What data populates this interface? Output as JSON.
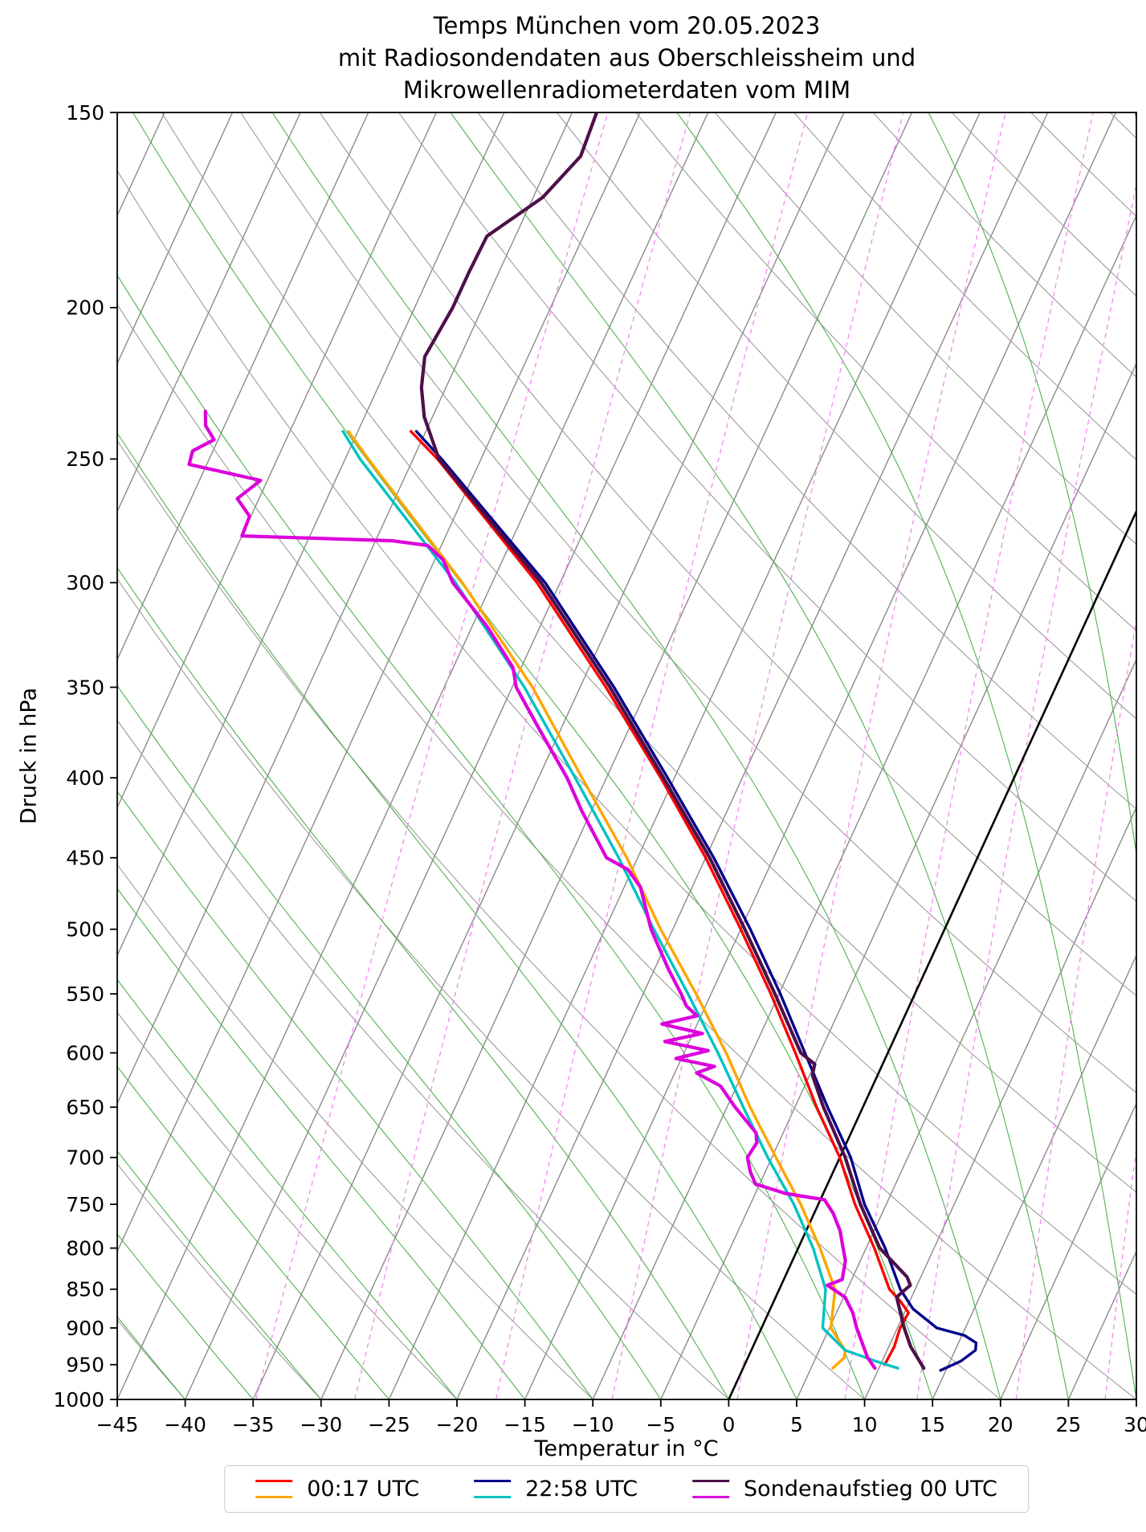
{
  "title": {
    "line1": "Temps München vom 20.05.2023",
    "line2": "mit Radiosondendaten aus Oberschleissheim und",
    "line3": "Mikrowellenradiometerdaten vom MIM"
  },
  "axes": {
    "xlabel": "Temperatur in °C",
    "ylabel": "Druck in hPa",
    "x_ticks": [
      -45,
      -40,
      -35,
      -30,
      -25,
      -20,
      -15,
      -10,
      -5,
      0,
      5,
      10,
      15,
      20,
      25,
      30
    ],
    "y_ticks": [
      150,
      200,
      250,
      300,
      350,
      400,
      450,
      500,
      550,
      600,
      650,
      700,
      750,
      800,
      850,
      900,
      950,
      1000
    ],
    "y_scale": "log"
  },
  "legend": {
    "entries": [
      {
        "label": "00:17 UTC",
        "colors": [
          "#ff0000",
          "#ffa500"
        ]
      },
      {
        "label": "22:58 UTC",
        "colors": [
          "#00008b",
          "#00c2c2"
        ]
      },
      {
        "label": "Sondenaufstieg 00 UTC",
        "colors": [
          "#4e1049",
          "#dc00dc"
        ]
      }
    ]
  },
  "chart_data": {
    "type": "line",
    "projection": "skew-t-log-p",
    "title": "Temps München vom 20.05.2023 mit Radiosondendaten aus Oberschleissheim und Mikrowellenradiometerdaten vom MIM",
    "xlabel": "Temperatur in °C",
    "ylabel": "Druck in hPa",
    "xlim": [
      -45,
      30
    ],
    "plim": [
      150,
      1000
    ],
    "skew_degC_per_ln_p": 22.92,
    "background": {
      "isotherms": {
        "from": -90,
        "to": 40,
        "step": 5,
        "color": "#8a8a8a",
        "highlight_value": 0,
        "highlight_color": "#000000"
      },
      "dry_adiabats": {
        "from": -40,
        "to": 180,
        "step": 10,
        "color": "#9b9b9b"
      },
      "moist_adiabats": {
        "from": -55,
        "to": 40,
        "step": 5,
        "color": "#4db24d"
      },
      "mixing_ratio_lines": {
        "values_g_per_kg": [
          0.2,
          0.4,
          1,
          2,
          4,
          7,
          10,
          16,
          24
        ],
        "color": "#ee82ee"
      }
    },
    "series": [
      {
        "id": "t-0017",
        "name": "00:17 UTC Temperatur",
        "color": "#ff0000",
        "width": 3.4,
        "points": [
          [
            950,
            10.3
          ],
          [
            925,
            10.4
          ],
          [
            900,
            10.2
          ],
          [
            880,
            10.3
          ],
          [
            865,
            9.3
          ],
          [
            850,
            8.1
          ],
          [
            800,
            5.6
          ],
          [
            750,
            2.7
          ],
          [
            700,
            0.0
          ],
          [
            650,
            -3.4
          ],
          [
            600,
            -6.8
          ],
          [
            550,
            -10.6
          ],
          [
            500,
            -15.0
          ],
          [
            450,
            -20.0
          ],
          [
            400,
            -26.0
          ],
          [
            350,
            -33.1
          ],
          [
            300,
            -41.7
          ],
          [
            250,
            -53.2
          ],
          [
            240,
            -56.1
          ]
        ]
      },
      {
        "id": "td-0017",
        "name": "00:17 UTC Taupunkt",
        "color": "#ffa500",
        "width": 3.4,
        "points": [
          [
            955,
            6.6
          ],
          [
            940,
            7.1
          ],
          [
            930,
            6.9
          ],
          [
            900,
            5.1
          ],
          [
            850,
            4.1
          ],
          [
            800,
            1.6
          ],
          [
            750,
            -1.3
          ],
          [
            700,
            -4.7
          ],
          [
            650,
            -8.3
          ],
          [
            600,
            -11.9
          ],
          [
            550,
            -16.1
          ],
          [
            500,
            -20.9
          ],
          [
            450,
            -25.8
          ],
          [
            400,
            -31.8
          ],
          [
            350,
            -38.5
          ],
          [
            300,
            -47.2
          ],
          [
            250,
            -58.3
          ],
          [
            240,
            -60.7
          ]
        ]
      },
      {
        "id": "t-2258",
        "name": "22:58 UTC Temperatur",
        "color": "#00008b",
        "width": 3.4,
        "points": [
          [
            958,
            14.6
          ],
          [
            945,
            15.8
          ],
          [
            930,
            16.5
          ],
          [
            920,
            16.3
          ],
          [
            910,
            15.2
          ],
          [
            900,
            12.9
          ],
          [
            875,
            10.5
          ],
          [
            850,
            8.9
          ],
          [
            800,
            6.4
          ],
          [
            750,
            3.4
          ],
          [
            700,
            0.8
          ],
          [
            650,
            -2.6
          ],
          [
            600,
            -6.1
          ],
          [
            550,
            -9.9
          ],
          [
            500,
            -14.3
          ],
          [
            450,
            -19.4
          ],
          [
            400,
            -25.5
          ],
          [
            350,
            -32.5
          ],
          [
            300,
            -41.1
          ],
          [
            250,
            -52.9
          ],
          [
            240,
            -55.7
          ]
        ]
      },
      {
        "id": "td-2258",
        "name": "22:58 UTC Taupunkt",
        "color": "#00c2c2",
        "width": 3.4,
        "points": [
          [
            955,
            11.4
          ],
          [
            945,
            9.5
          ],
          [
            930,
            6.9
          ],
          [
            900,
            4.5
          ],
          [
            850,
            3.4
          ],
          [
            800,
            1.1
          ],
          [
            750,
            -1.8
          ],
          [
            700,
            -5.3
          ],
          [
            650,
            -8.8
          ],
          [
            600,
            -12.5
          ],
          [
            550,
            -16.7
          ],
          [
            500,
            -21.4
          ],
          [
            450,
            -26.4
          ],
          [
            400,
            -32.3
          ],
          [
            350,
            -39.1
          ],
          [
            300,
            -47.7
          ],
          [
            250,
            -58.9
          ],
          [
            240,
            -61.1
          ]
        ]
      },
      {
        "id": "t-sonde",
        "name": "Sondenaufstieg 00 UTC Temperatur",
        "color": "#4e1049",
        "width": 4.2,
        "points": [
          [
            955,
            13.3
          ],
          [
            925,
            11.6
          ],
          [
            900,
            10.5
          ],
          [
            860,
            8.9
          ],
          [
            845,
            9.5
          ],
          [
            835,
            9.0
          ],
          [
            800,
            6.0
          ],
          [
            750,
            3.1
          ],
          [
            700,
            0.4
          ],
          [
            650,
            -2.9
          ],
          [
            620,
            -4.8
          ],
          [
            610,
            -5.0
          ],
          [
            600,
            -6.4
          ],
          [
            550,
            -10.3
          ],
          [
            500,
            -14.7
          ],
          [
            450,
            -19.7
          ],
          [
            400,
            -25.8
          ],
          [
            350,
            -32.8
          ],
          [
            300,
            -41.4
          ],
          [
            250,
            -53.1
          ],
          [
            235,
            -55.6
          ],
          [
            225,
            -56.8
          ],
          [
            215,
            -57.6
          ],
          [
            200,
            -57.2
          ],
          [
            190,
            -57.2
          ],
          [
            180,
            -57.1
          ],
          [
            170,
            -54.3
          ],
          [
            160,
            -52.9
          ],
          [
            150,
            -53.2
          ]
        ]
      },
      {
        "id": "td-sonde",
        "name": "Sondenaufstieg 00 UTC Taupunkt",
        "color": "#dc00dc",
        "width": 4.2,
        "points": [
          [
            955,
            9.7
          ],
          [
            940,
            8.8
          ],
          [
            900,
            7.0
          ],
          [
            880,
            6.2
          ],
          [
            860,
            5.1
          ],
          [
            845,
            3.4
          ],
          [
            838,
            4.3
          ],
          [
            815,
            3.9
          ],
          [
            800,
            3.3
          ],
          [
            780,
            2.5
          ],
          [
            760,
            1.4
          ],
          [
            745,
            0.3
          ],
          [
            738,
            -2.8
          ],
          [
            728,
            -5.3
          ],
          [
            715,
            -6.1
          ],
          [
            700,
            -6.8
          ],
          [
            685,
            -6.6
          ],
          [
            675,
            -7.0
          ],
          [
            650,
            -9.4
          ],
          [
            630,
            -11.2
          ],
          [
            618,
            -13.4
          ],
          [
            612,
            -12.3
          ],
          [
            605,
            -15.4
          ],
          [
            598,
            -13.3
          ],
          [
            590,
            -16.8
          ],
          [
            583,
            -14.3
          ],
          [
            575,
            -17.6
          ],
          [
            568,
            -15.3
          ],
          [
            560,
            -16.4
          ],
          [
            550,
            -17.2
          ],
          [
            530,
            -19.0
          ],
          [
            500,
            -21.6
          ],
          [
            470,
            -23.8
          ],
          [
            458,
            -25.3
          ],
          [
            450,
            -27.3
          ],
          [
            420,
            -30.7
          ],
          [
            400,
            -32.9
          ],
          [
            370,
            -36.9
          ],
          [
            350,
            -39.7
          ],
          [
            340,
            -40.6
          ],
          [
            320,
            -43.9
          ],
          [
            300,
            -47.9
          ],
          [
            290,
            -49.4
          ],
          [
            284,
            -51.0
          ],
          [
            282,
            -53.8
          ],
          [
            280,
            -65.0
          ],
          [
            272,
            -65.1
          ],
          [
            265,
            -66.6
          ],
          [
            258,
            -65.5
          ],
          [
            252,
            -71.3
          ],
          [
            247,
            -71.5
          ],
          [
            243,
            -70.3
          ],
          [
            238,
            -71.4
          ],
          [
            233,
            -71.9
          ]
        ]
      }
    ]
  }
}
